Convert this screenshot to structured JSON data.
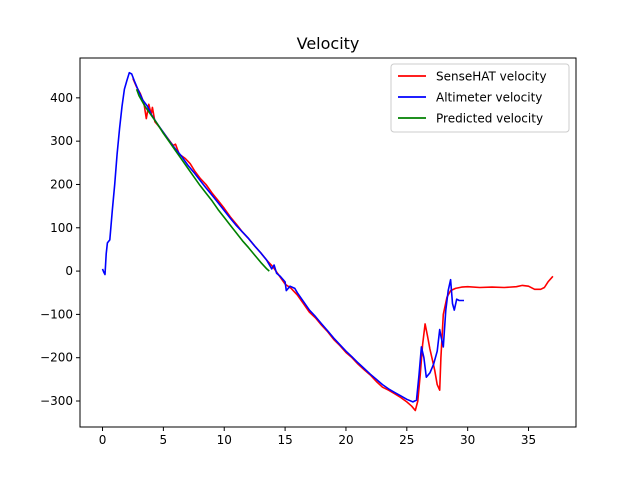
{
  "chart_data": {
    "type": "line",
    "title": "Velocity",
    "xlabel": "",
    "ylabel": "",
    "xlim": [
      -1.85,
      38.9
    ],
    "ylim": [
      -360,
      492
    ],
    "xticks": [
      0,
      5,
      10,
      15,
      20,
      25,
      30,
      35
    ],
    "yticks": [
      -300,
      -200,
      -100,
      0,
      100,
      200,
      300,
      400
    ],
    "grid": false,
    "legend_position": "top-right",
    "series": [
      {
        "name": "SenseHAT velocity",
        "color": "#ff0000",
        "points": [
          [
            2.5,
            445
          ],
          [
            2.8,
            425
          ],
          [
            3.1,
            410
          ],
          [
            3.4,
            388
          ],
          [
            3.6,
            352
          ],
          [
            3.8,
            385
          ],
          [
            4.0,
            362
          ],
          [
            4.1,
            378
          ],
          [
            4.3,
            345
          ],
          [
            4.6,
            335
          ],
          [
            5.0,
            320
          ],
          [
            5.4,
            305
          ],
          [
            5.8,
            290
          ],
          [
            6.0,
            293
          ],
          [
            6.3,
            270
          ],
          [
            6.8,
            260
          ],
          [
            7.2,
            248
          ],
          [
            7.6,
            230
          ],
          [
            8.0,
            215
          ],
          [
            8.5,
            200
          ],
          [
            9.0,
            180
          ],
          [
            9.5,
            163
          ],
          [
            10.0,
            145
          ],
          [
            10.5,
            125
          ],
          [
            11.0,
            108
          ],
          [
            11.5,
            90
          ],
          [
            12.0,
            75
          ],
          [
            12.5,
            58
          ],
          [
            13.0,
            42
          ],
          [
            13.5,
            25
          ],
          [
            14.0,
            10
          ],
          [
            14.5,
            -10
          ],
          [
            15.0,
            -30
          ],
          [
            15.5,
            -40
          ],
          [
            16.0,
            -55
          ],
          [
            16.5,
            -75
          ],
          [
            17.0,
            -95
          ],
          [
            17.5,
            -108
          ],
          [
            18.0,
            -125
          ],
          [
            18.5,
            -140
          ],
          [
            19.0,
            -158
          ],
          [
            19.5,
            -172
          ],
          [
            20.0,
            -188
          ],
          [
            20.5,
            -200
          ],
          [
            21.0,
            -215
          ],
          [
            21.5,
            -228
          ],
          [
            22.0,
            -240
          ],
          [
            22.5,
            -255
          ],
          [
            23.0,
            -268
          ],
          [
            23.5,
            -275
          ],
          [
            24.0,
            -283
          ],
          [
            24.5,
            -292
          ],
          [
            25.0,
            -302
          ],
          [
            25.4,
            -312
          ],
          [
            25.7,
            -322
          ],
          [
            25.9,
            -300
          ],
          [
            26.1,
            -240
          ],
          [
            26.3,
            -170
          ],
          [
            26.5,
            -122
          ],
          [
            26.7,
            -150
          ],
          [
            26.9,
            -180
          ],
          [
            27.1,
            -205
          ],
          [
            27.3,
            -230
          ],
          [
            27.5,
            -262
          ],
          [
            27.7,
            -275
          ],
          [
            27.8,
            -200
          ],
          [
            28.0,
            -100
          ],
          [
            28.3,
            -60
          ],
          [
            28.6,
            -45
          ],
          [
            29.0,
            -40
          ],
          [
            29.5,
            -37
          ],
          [
            30.0,
            -36
          ],
          [
            31.0,
            -38
          ],
          [
            32.0,
            -37
          ],
          [
            33.0,
            -38
          ],
          [
            34.0,
            -36
          ],
          [
            34.5,
            -33
          ],
          [
            35.0,
            -35
          ],
          [
            35.5,
            -42
          ],
          [
            36.0,
            -42
          ],
          [
            36.3,
            -38
          ],
          [
            36.6,
            -25
          ],
          [
            37.0,
            -12
          ]
        ]
      },
      {
        "name": "Altimeter velocity",
        "color": "#0000ff",
        "points": [
          [
            0.0,
            5
          ],
          [
            0.1,
            -2
          ],
          [
            0.2,
            -8
          ],
          [
            0.3,
            40
          ],
          [
            0.4,
            65
          ],
          [
            0.6,
            72
          ],
          [
            0.8,
            140
          ],
          [
            1.0,
            200
          ],
          [
            1.2,
            270
          ],
          [
            1.4,
            330
          ],
          [
            1.6,
            380
          ],
          [
            1.8,
            420
          ],
          [
            2.0,
            440
          ],
          [
            2.2,
            458
          ],
          [
            2.4,
            455
          ],
          [
            2.6,
            440
          ],
          [
            2.9,
            420
          ],
          [
            3.3,
            395
          ],
          [
            3.7,
            380
          ],
          [
            4.0,
            362
          ],
          [
            4.5,
            340
          ],
          [
            5.0,
            320
          ],
          [
            5.5,
            300
          ],
          [
            6.0,
            282
          ],
          [
            6.5,
            265
          ],
          [
            7.0,
            245
          ],
          [
            7.5,
            228
          ],
          [
            8.0,
            210
          ],
          [
            8.5,
            192
          ],
          [
            9.0,
            175
          ],
          [
            9.5,
            158
          ],
          [
            10.0,
            140
          ],
          [
            10.5,
            122
          ],
          [
            11.0,
            105
          ],
          [
            11.5,
            90
          ],
          [
            12.0,
            75
          ],
          [
            12.5,
            58
          ],
          [
            13.0,
            42
          ],
          [
            13.5,
            25
          ],
          [
            13.9,
            5
          ],
          [
            14.1,
            14
          ],
          [
            14.3,
            -5
          ],
          [
            14.6,
            -12
          ],
          [
            15.0,
            -25
          ],
          [
            15.1,
            -45
          ],
          [
            15.4,
            -35
          ],
          [
            15.8,
            -40
          ],
          [
            16.0,
            -50
          ],
          [
            16.5,
            -70
          ],
          [
            17.0,
            -90
          ],
          [
            17.5,
            -105
          ],
          [
            18.0,
            -122
          ],
          [
            18.5,
            -138
          ],
          [
            19.0,
            -155
          ],
          [
            19.5,
            -170
          ],
          [
            20.0,
            -185
          ],
          [
            20.5,
            -198
          ],
          [
            21.0,
            -212
          ],
          [
            21.5,
            -225
          ],
          [
            22.0,
            -238
          ],
          [
            22.5,
            -250
          ],
          [
            23.0,
            -262
          ],
          [
            23.5,
            -272
          ],
          [
            24.0,
            -280
          ],
          [
            24.5,
            -288
          ],
          [
            25.0,
            -296
          ],
          [
            25.5,
            -302
          ],
          [
            25.8,
            -298
          ],
          [
            26.0,
            -240
          ],
          [
            26.2,
            -175
          ],
          [
            26.4,
            -200
          ],
          [
            26.6,
            -245
          ],
          [
            26.9,
            -235
          ],
          [
            27.2,
            -215
          ],
          [
            27.5,
            -185
          ],
          [
            27.7,
            -135
          ],
          [
            27.8,
            -150
          ],
          [
            28.0,
            -175
          ],
          [
            28.2,
            -90
          ],
          [
            28.4,
            -45
          ],
          [
            28.6,
            -20
          ],
          [
            28.75,
            -75
          ],
          [
            28.9,
            -90
          ],
          [
            29.1,
            -65
          ],
          [
            29.3,
            -68
          ],
          [
            29.7,
            -68
          ]
        ]
      },
      {
        "name": "Predicted velocity",
        "color": "#008000",
        "points": [
          [
            2.8,
            420
          ],
          [
            3.0,
            405
          ],
          [
            3.5,
            380
          ],
          [
            4.0,
            360
          ],
          [
            4.5,
            340
          ],
          [
            5.0,
            318
          ],
          [
            5.5,
            298
          ],
          [
            6.0,
            278
          ],
          [
            6.5,
            258
          ],
          [
            7.0,
            238
          ],
          [
            7.5,
            218
          ],
          [
            8.0,
            198
          ],
          [
            8.5,
            180
          ],
          [
            9.0,
            162
          ],
          [
            9.5,
            142
          ],
          [
            10.0,
            124
          ],
          [
            10.5,
            106
          ],
          [
            11.0,
            88
          ],
          [
            11.5,
            70
          ],
          [
            12.0,
            54
          ],
          [
            12.5,
            37
          ],
          [
            13.0,
            20
          ],
          [
            13.5,
            5
          ],
          [
            13.7,
            0
          ]
        ]
      }
    ]
  }
}
